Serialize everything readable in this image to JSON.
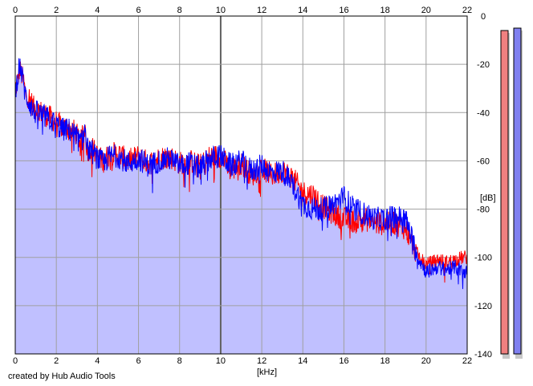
{
  "credit": "created by Hub Audio Tools",
  "chart_data": {
    "type": "area",
    "xlabel": "[kHz]",
    "ylabel": "[dB]",
    "xlim": [
      0,
      22
    ],
    "ylim": [
      -140,
      0
    ],
    "x_ticks": [
      0,
      2,
      4,
      6,
      8,
      10,
      12,
      14,
      16,
      18,
      20,
      22
    ],
    "y_ticks": [
      0,
      -20,
      -40,
      -60,
      -80,
      -100,
      -120,
      -140
    ],
    "y_tick_labels": [
      "0",
      "-20",
      "-40",
      "-60",
      "-80",
      "-100",
      "-120",
      "-140"
    ],
    "grid": true,
    "series": [
      {
        "color": "#ff0000",
        "x": [
          0,
          0.1,
          0.2,
          0.3,
          0.4,
          0.5,
          0.7,
          0.9,
          1.1,
          1.3,
          1.5,
          1.7,
          2,
          2.3,
          2.6,
          2.9,
          3.2,
          3.4,
          3.5,
          3.7,
          4,
          4.3,
          4.6,
          5,
          5.5,
          6,
          6.5,
          7,
          7.5,
          8,
          8.5,
          9,
          9.5,
          10,
          10.5,
          11,
          11.5,
          12,
          12.5,
          13,
          13.5,
          14,
          14.5,
          15,
          15.5,
          16,
          16.5,
          17,
          17.5,
          18,
          18.5,
          19,
          19.3,
          19.6,
          19.8,
          20,
          20.3,
          20.6,
          21,
          21.4,
          21.8,
          22
        ],
        "y": [
          -30,
          -28,
          -22,
          -24,
          -27,
          -32,
          -34,
          -38,
          -39,
          -40,
          -41,
          -42,
          -44,
          -46,
          -46,
          -48,
          -52,
          -46,
          -56,
          -54,
          -58,
          -60,
          -57,
          -57,
          -60,
          -58,
          -61,
          -59,
          -58,
          -61,
          -60,
          -62,
          -58,
          -58,
          -64,
          -61,
          -66,
          -63,
          -66,
          -64,
          -67,
          -73,
          -74,
          -79,
          -82,
          -84,
          -85,
          -84,
          -86,
          -86,
          -86,
          -88,
          -94,
          -99,
          -101,
          -103,
          -102,
          -101,
          -102,
          -101,
          -100,
          -100
        ]
      },
      {
        "color": "#0000ff",
        "x": [
          0,
          0.1,
          0.2,
          0.3,
          0.4,
          0.5,
          0.7,
          0.9,
          1.1,
          1.3,
          1.5,
          1.7,
          2,
          2.3,
          2.6,
          2.9,
          3.2,
          3.4,
          3.5,
          3.7,
          4,
          4.3,
          4.6,
          5,
          5.5,
          6,
          6.5,
          7,
          7.5,
          8,
          8.5,
          9,
          9.5,
          10,
          10.5,
          11,
          11.5,
          12,
          12.5,
          13,
          13.5,
          14,
          14.5,
          15,
          15.5,
          16,
          16.5,
          17,
          17.5,
          18,
          18.5,
          19,
          19.3,
          19.6,
          19.8,
          20,
          20.3,
          20.6,
          21,
          21.4,
          21.8,
          22
        ],
        "y": [
          -32,
          -26,
          -20,
          -23,
          -28,
          -33,
          -36,
          -40,
          -40,
          -41,
          -42,
          -43,
          -45,
          -47,
          -47,
          -49,
          -53,
          -47,
          -55,
          -56,
          -59,
          -61,
          -58,
          -58,
          -61,
          -59,
          -62,
          -60,
          -59,
          -62,
          -61,
          -63,
          -59,
          -58,
          -62,
          -60,
          -64,
          -62,
          -65,
          -64,
          -70,
          -78,
          -80,
          -80,
          -78,
          -75,
          -80,
          -82,
          -84,
          -84,
          -83,
          -84,
          -92,
          -100,
          -103,
          -106,
          -105,
          -104,
          -105,
          -104,
          -106,
          -106
        ]
      }
    ],
    "fill_color": "#c0c0ff",
    "level_meters": [
      {
        "color": "#f08080",
        "level_db": -6
      },
      {
        "color": "#8080f0",
        "level_db": -5
      }
    ]
  }
}
